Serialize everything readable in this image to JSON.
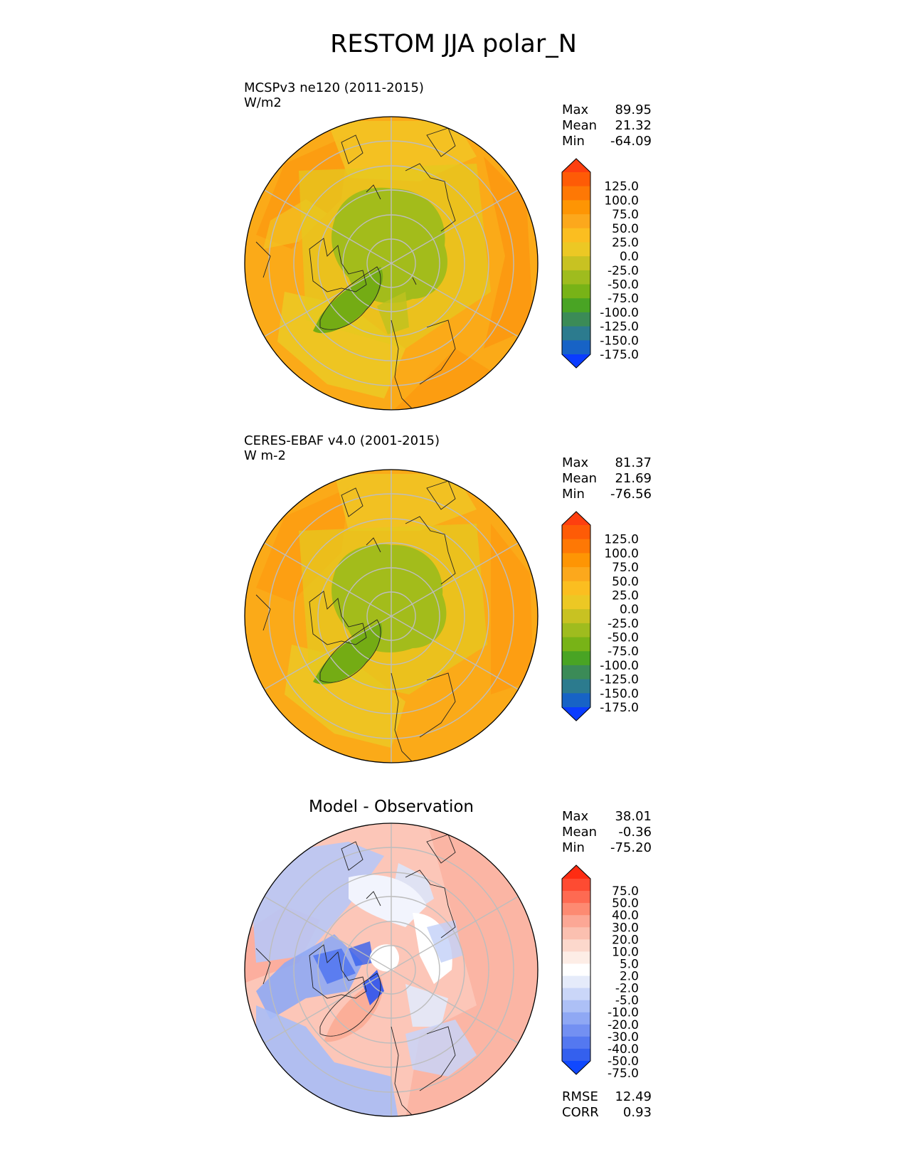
{
  "title": "RESTOM JJA polar_N",
  "panels": [
    {
      "id": "model",
      "title_lines": [
        "MCSPv3 ne120 (2011-2015)",
        "W/m2"
      ],
      "center_title": "",
      "stats": [
        {
          "label": "Max",
          "value": "89.95"
        },
        {
          "label": "Mean",
          "value": "21.32"
        },
        {
          "label": "Min",
          "value": "-64.09"
        }
      ],
      "colorbar_ticks": [
        "125.0",
        "100.0",
        "75.0",
        "50.0",
        "25.0",
        "0.0",
        "-25.0",
        "-50.0",
        "-75.0",
        "-100.0",
        "-125.0",
        "-150.0",
        "-175.0"
      ],
      "colorbar_colors": [
        "#fe3f0f",
        "#fe5b06",
        "#fe7805",
        "#fe9504",
        "#fca81c",
        "#fbbe20",
        "#ecc824",
        "#c8c222",
        "#9fbc1e",
        "#78b317",
        "#49a424",
        "#3b8b57",
        "#2c7b8e",
        "#1763c6",
        "#0a3cff"
      ],
      "scheme": "abs"
    },
    {
      "id": "obs",
      "title_lines": [
        "CERES-EBAF v4.0 (2001-2015)",
        "W m-2"
      ],
      "center_title": "",
      "stats": [
        {
          "label": "Max",
          "value": "81.37"
        },
        {
          "label": "Mean",
          "value": "21.69"
        },
        {
          "label": "Min",
          "value": "-76.56"
        }
      ],
      "colorbar_ticks": [
        "125.0",
        "100.0",
        "75.0",
        "50.0",
        "25.0",
        "0.0",
        "-25.0",
        "-50.0",
        "-75.0",
        "-100.0",
        "-125.0",
        "-150.0",
        "-175.0"
      ],
      "colorbar_colors": [
        "#fe3f0f",
        "#fe5b06",
        "#fe7805",
        "#fe9504",
        "#fca81c",
        "#fbbe20",
        "#ecc824",
        "#c8c222",
        "#9fbc1e",
        "#78b317",
        "#49a424",
        "#3b8b57",
        "#2c7b8e",
        "#1763c6",
        "#0a3cff"
      ],
      "scheme": "abs"
    },
    {
      "id": "diff",
      "title_lines": [],
      "center_title": "Model - Observation",
      "stats": [
        {
          "label": "Max",
          "value": "38.01"
        },
        {
          "label": "Mean",
          "value": "-0.36"
        },
        {
          "label": "Min",
          "value": "-75.20"
        }
      ],
      "colorbar_ticks": [
        "75.0",
        "50.0",
        "40.0",
        "30.0",
        "20.0",
        "10.0",
        "5.0",
        "2.0",
        "-2.0",
        "-5.0",
        "-10.0",
        "-20.0",
        "-30.0",
        "-40.0",
        "-50.0",
        "-75.0"
      ],
      "colorbar_colors": [
        "#fe2c12",
        "#fe4b32",
        "#fe6a52",
        "#fd8a72",
        "#fca795",
        "#fbc0b0",
        "#fcd8cc",
        "#fdede6",
        "#ffffff",
        "#e5ebfa",
        "#cad6f8",
        "#adc0f6",
        "#8fa8f4",
        "#7390f2",
        "#5478f0",
        "#3460ee",
        "#1048fe"
      ],
      "scheme": "diff",
      "extra_stats": [
        {
          "label": "RMSE",
          "value": "12.49"
        },
        {
          "label": "CORR",
          "value": "0.93"
        }
      ]
    }
  ]
}
